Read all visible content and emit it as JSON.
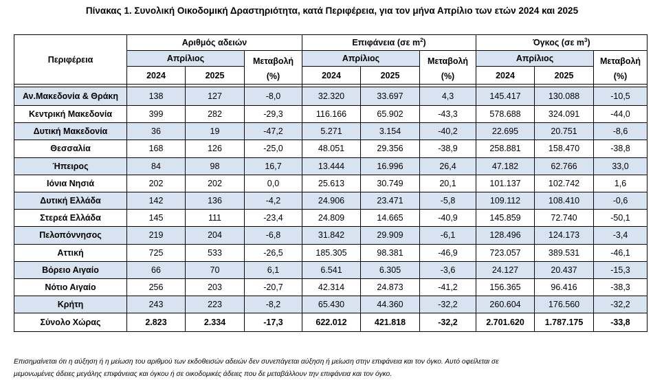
{
  "title": "Πίνακας 1. Συνολική Οικοδομική Δραστηριότητα, κατά  Περιφέρεια, για τον μήνα Απρίλιο των ετών 2024 και 2025",
  "headers": {
    "region": "Περιφέρεια",
    "permits": "Αριθμός αδειών",
    "area": "Επιφάνεια (σε m",
    "area_sup": "2",
    "volume": "Όγκος (σε m",
    "volume_sup": "3",
    "close_paren": ")",
    "month": "Απρίλιος",
    "change": "Μεταβολή",
    "change_unit": "(%)",
    "y2024": "2024",
    "y2025": "2025"
  },
  "rows": [
    {
      "region": "Αν.Μακεδονία & Θράκη",
      "p24": "138",
      "p25": "127",
      "pc": "-8,0",
      "a24": "32.320",
      "a25": "33.697",
      "ac": "4,3",
      "v24": "145.417",
      "v25": "130.088",
      "vc": "-10,5",
      "shaded": true
    },
    {
      "region": "Κεντρική Μακεδονία",
      "p24": "399",
      "p25": "282",
      "pc": "-29,3",
      "a24": "116.166",
      "a25": "65.902",
      "ac": "-43,3",
      "v24": "578.688",
      "v25": "324.091",
      "vc": "-44,0",
      "shaded": false
    },
    {
      "region": "Δυτική Μακεδονία",
      "p24": "36",
      "p25": "19",
      "pc": "-47,2",
      "a24": "5.271",
      "a25": "3.154",
      "ac": "-40,2",
      "v24": "22.695",
      "v25": "20.751",
      "vc": "-8,6",
      "shaded": true
    },
    {
      "region": "Θεσσαλία",
      "p24": "168",
      "p25": "126",
      "pc": "-25,0",
      "a24": "48.051",
      "a25": "29.356",
      "ac": "-38,9",
      "v24": "258.881",
      "v25": "158.470",
      "vc": "-38,8",
      "shaded": false
    },
    {
      "region": "Ήπειρος",
      "p24": "84",
      "p25": "98",
      "pc": "16,7",
      "a24": "13.444",
      "a25": "16.996",
      "ac": "26,4",
      "v24": "47.182",
      "v25": "62.766",
      "vc": "33,0",
      "shaded": true
    },
    {
      "region": "Ιόνια Νησιά",
      "p24": "202",
      "p25": "202",
      "pc": "0,0",
      "a24": "25.613",
      "a25": "30.749",
      "ac": "20,1",
      "v24": "101.137",
      "v25": "102.742",
      "vc": "1,6",
      "shaded": false
    },
    {
      "region": "Δυτική Ελλάδα",
      "p24": "142",
      "p25": "136",
      "pc": "-4,2",
      "a24": "24.906",
      "a25": "23.471",
      "ac": "-5,8",
      "v24": "109.112",
      "v25": "108.410",
      "vc": "-0,6",
      "shaded": true
    },
    {
      "region": "Στερεά Ελλάδα",
      "p24": "145",
      "p25": "111",
      "pc": "-23,4",
      "a24": "24.809",
      "a25": "14.665",
      "ac": "-40,9",
      "v24": "145.859",
      "v25": "72.740",
      "vc": "-50,1",
      "shaded": false
    },
    {
      "region": "Πελοπόννησος",
      "p24": "219",
      "p25": "204",
      "pc": "-6,8",
      "a24": "31.842",
      "a25": "29.909",
      "ac": "-6,1",
      "v24": "128.496",
      "v25": "124.173",
      "vc": "-3,4",
      "shaded": true
    },
    {
      "region": "Αττική",
      "p24": "725",
      "p25": "533",
      "pc": "-26,5",
      "a24": "185.305",
      "a25": "98.381",
      "ac": "-46,9",
      "v24": "723.057",
      "v25": "389.531",
      "vc": "-46,1",
      "shaded": false
    },
    {
      "region": "Βόρειο Αιγαίο",
      "p24": "66",
      "p25": "70",
      "pc": "6,1",
      "a24": "6.541",
      "a25": "6.305",
      "ac": "-3,6",
      "v24": "24.127",
      "v25": "20.437",
      "vc": "-15,3",
      "shaded": true
    },
    {
      "region": "Νότιο Αιγαίο",
      "p24": "256",
      "p25": "203",
      "pc": "-20,7",
      "a24": "42.314",
      "a25": "24.873",
      "ac": "-41,2",
      "v24": "156.365",
      "v25": "96.416",
      "vc": "-38,3",
      "shaded": false
    },
    {
      "region": "Κρήτη",
      "p24": "243",
      "p25": "223",
      "pc": "-8,2",
      "a24": "65.430",
      "a25": "44.360",
      "ac": "-32,2",
      "v24": "260.604",
      "v25": "176.560",
      "vc": "-32,2",
      "shaded": true
    }
  ],
  "total": {
    "region": "Σύνολο Χώρας",
    "p24": "2.823",
    "p25": "2.334",
    "pc": "-17,3",
    "a24": "622.012",
    "a25": "421.818",
    "ac": "-32,2",
    "v24": "2.701.620",
    "v25": "1.787.175",
    "vc": "-33,8"
  },
  "note_line1": "Επισημαίνεται ότι η αύξηση ή η μείωση του αριθμού των εκδοθεισών αδειών δεν συνεπάγεται αύξηση ή μείωση στην επιφάνεια και τον όγκο. Αυτό οφείλεται σε",
  "note_line2": "μεμονωμένες άδειες μεγάλης επιφάνειας και όγκου ή σε οικοδομικές άδειες που δε μεταβάλλουν την επιφάνεια και τον όγκο."
}
